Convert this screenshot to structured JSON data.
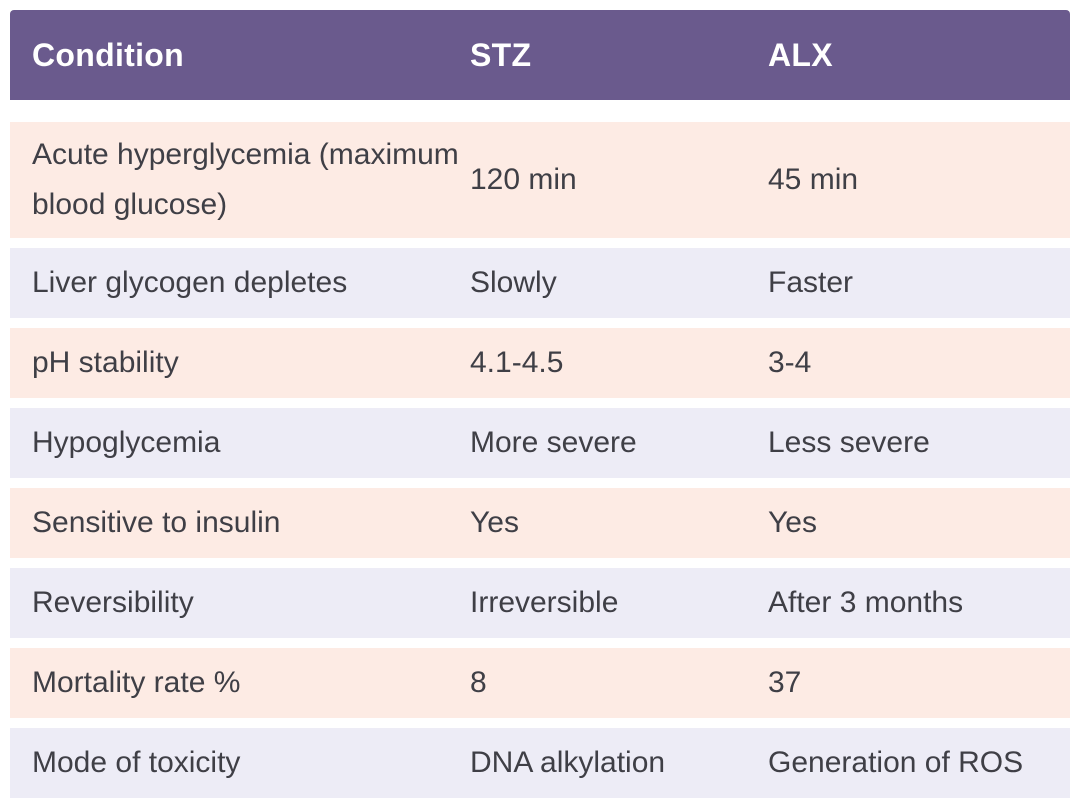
{
  "chart_data": {
    "type": "table",
    "title": "",
    "legend": "none",
    "columns": [
      "Condition",
      "STZ",
      "ALX"
    ],
    "rows": [
      [
        "Acute hyperglycemia (maximum blood glucose)",
        "120 min",
        "45 min"
      ],
      [
        "Liver glycogen depletes",
        "Slowly",
        "Faster"
      ],
      [
        "pH stability",
        "4.1-4.5",
        "3-4"
      ],
      [
        "Hypoglycemia",
        "More severe",
        "Less severe"
      ],
      [
        "Sensitive to insulin",
        "Yes",
        "Yes"
      ],
      [
        "Reversibility",
        "Irreversible",
        "After 3 months"
      ],
      [
        "Mortality rate %",
        "8",
        "37"
      ],
      [
        "Mode of toxicity",
        "DNA alkylation",
        "Generation of ROS"
      ]
    ]
  },
  "colors": {
    "header_bg": "#6a5a8d",
    "header_text": "#ffffff",
    "row_pink": "#fdebe4",
    "row_lavender": "#edecf6",
    "body_text": "#3f3f46"
  }
}
